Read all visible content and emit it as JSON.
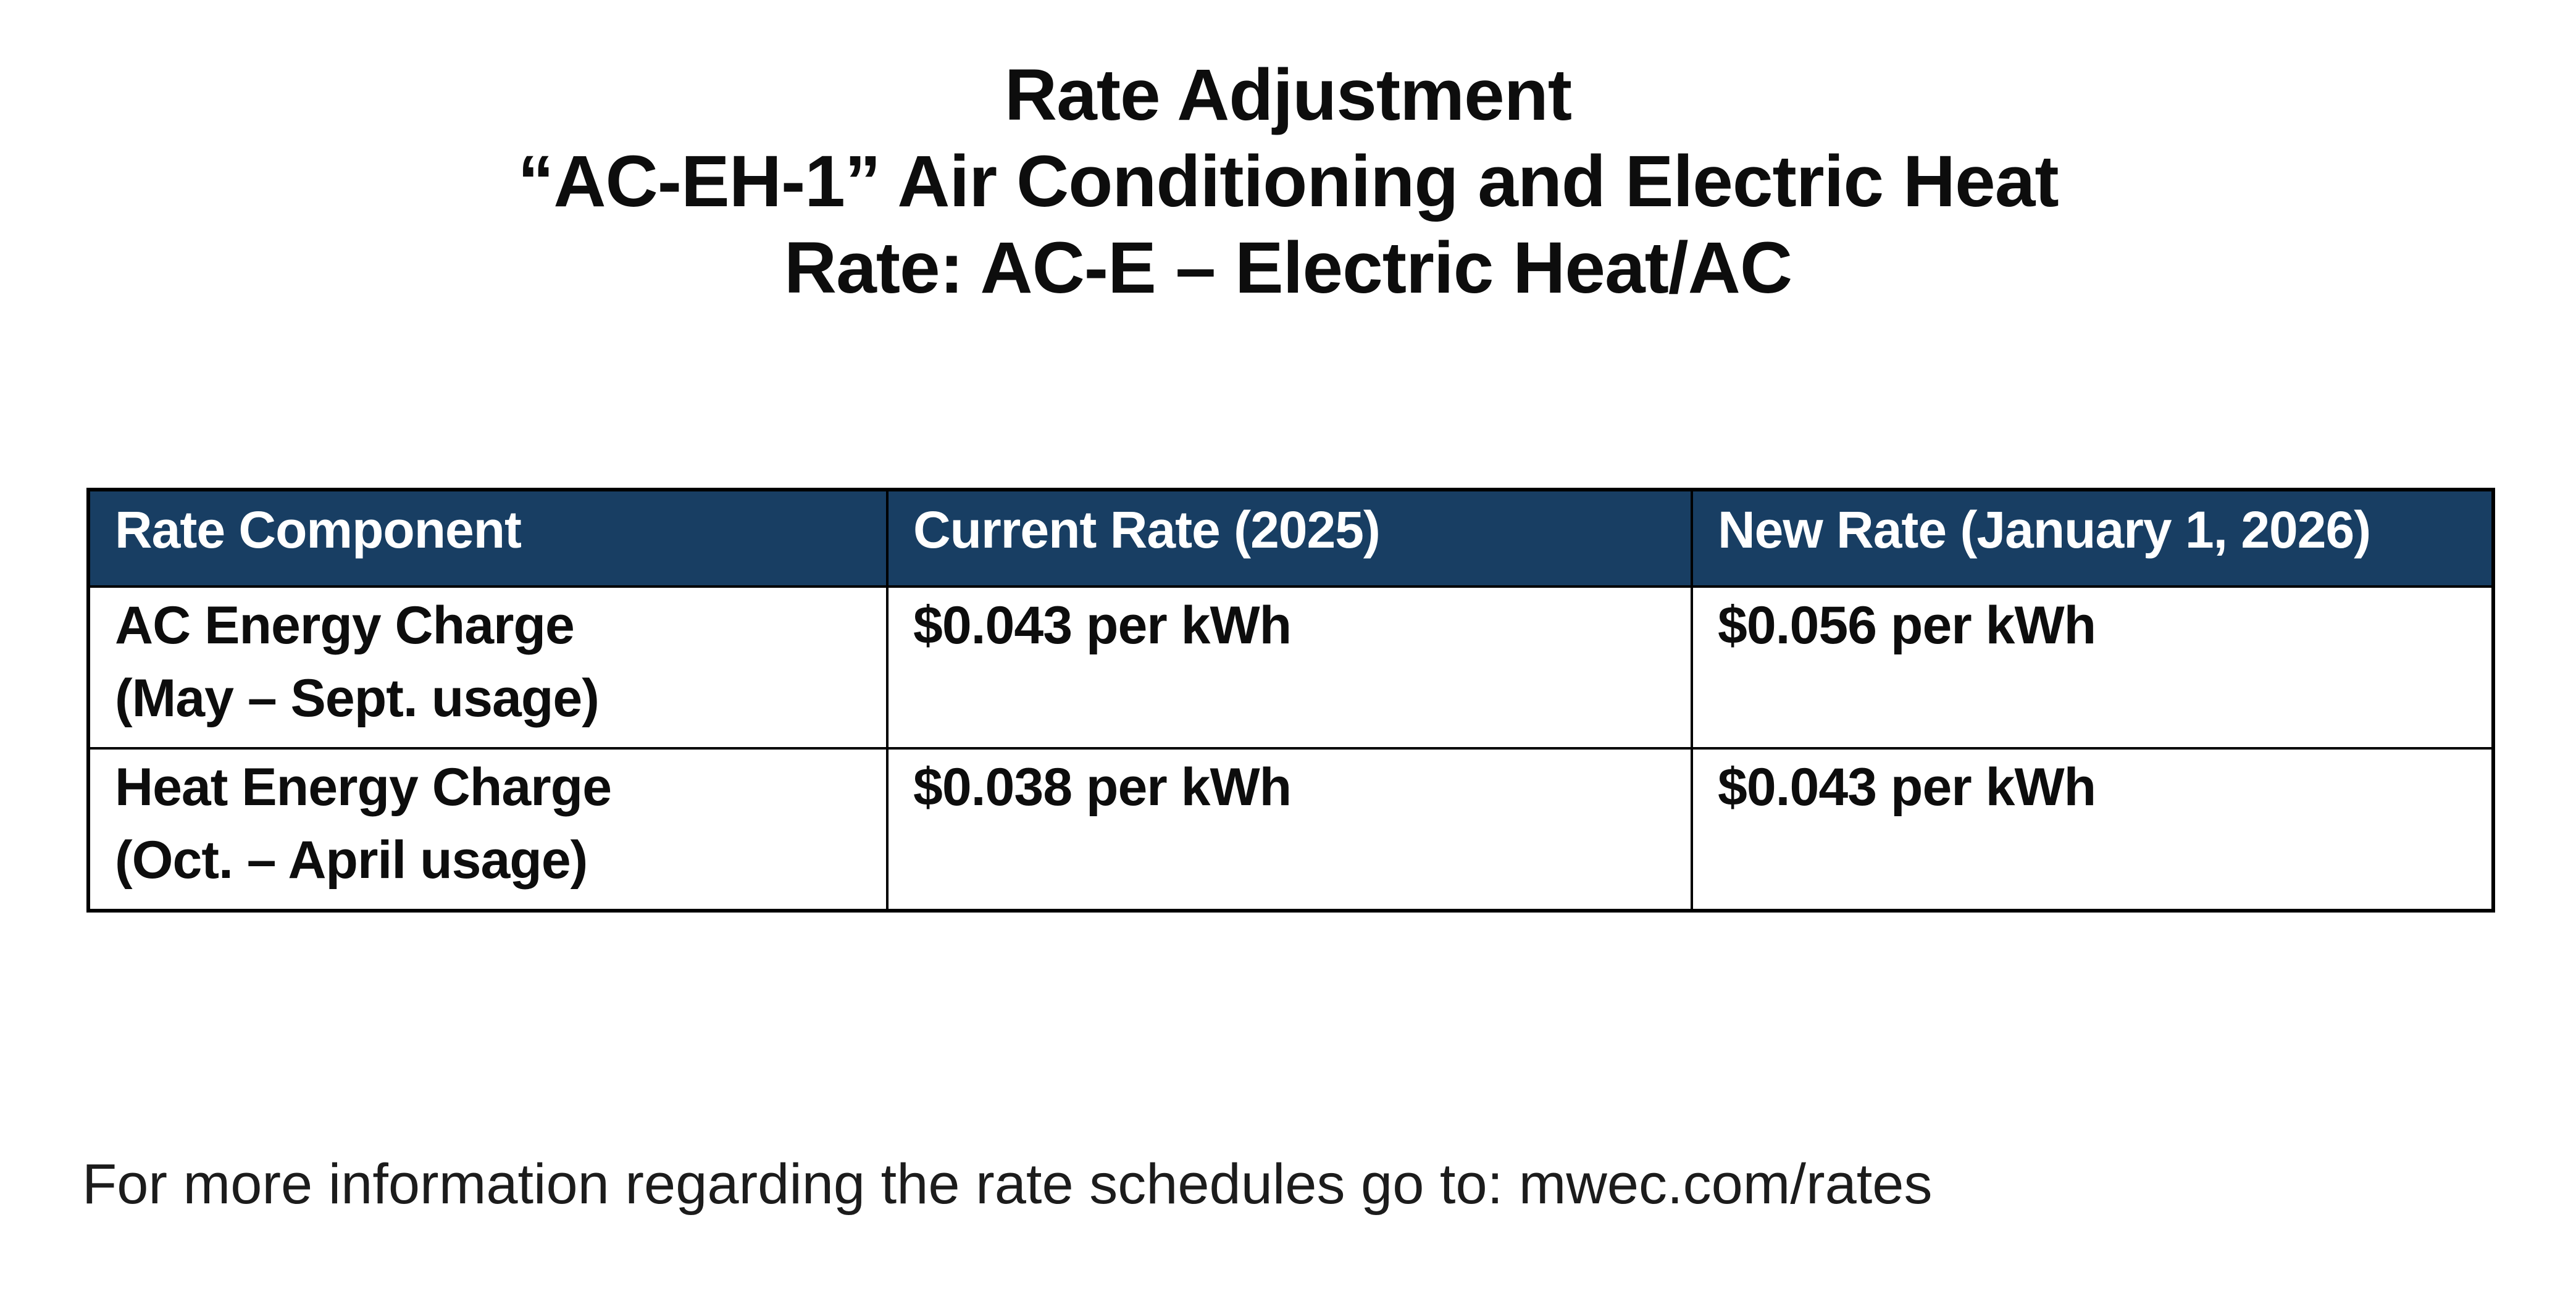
{
  "title": {
    "line1": "Rate Adjustment",
    "line2": "“AC-EH-1” Air Conditioning and Electric Heat",
    "line3": "Rate: AC-E – Electric Heat/AC"
  },
  "table": {
    "header_bg_color": "#183e63",
    "header_text_color": "#ffffff",
    "border_color": "#000000",
    "columns": [
      "Rate Component",
      "Current Rate (2025)",
      "New Rate (January 1, 2026)"
    ],
    "rows": [
      {
        "component_line1": "AC Energy Charge",
        "component_line2": "(May – Sept. usage)",
        "current_rate": "$0.043 per kWh",
        "new_rate": "$0.056 per kWh"
      },
      {
        "component_line1": "Heat Energy Charge",
        "component_line2": "(Oct. – April usage)",
        "current_rate": "$0.038 per kWh",
        "new_rate": "$0.043 per kWh"
      }
    ]
  },
  "footer": {
    "text": "For more information regarding the rate schedules go to: mwec.com/rates"
  }
}
